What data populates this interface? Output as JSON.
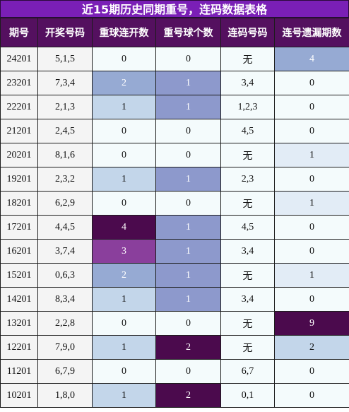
{
  "title": "近15期历史同期重号，连码数据表格",
  "columns": [
    "期号",
    "开奖号码",
    "重球连开数",
    "重号球个数",
    "连码号码",
    "连号遗漏期数"
  ],
  "rows": [
    {
      "period": "24201",
      "draw": "5,1,5",
      "repeat_streak": "0",
      "repeat_count": "0",
      "consecutive": "无",
      "consec_miss": "4"
    },
    {
      "period": "23201",
      "draw": "7,3,4",
      "repeat_streak": "2",
      "repeat_count": "1",
      "consecutive": "3,4",
      "consec_miss": "0"
    },
    {
      "period": "22201",
      "draw": "2,1,3",
      "repeat_streak": "1",
      "repeat_count": "1",
      "consecutive": "1,2,3",
      "consec_miss": "0"
    },
    {
      "period": "21201",
      "draw": "2,4,5",
      "repeat_streak": "0",
      "repeat_count": "0",
      "consecutive": "4,5",
      "consec_miss": "0"
    },
    {
      "period": "20201",
      "draw": "8,1,6",
      "repeat_streak": "0",
      "repeat_count": "0",
      "consecutive": "无",
      "consec_miss": "1"
    },
    {
      "period": "19201",
      "draw": "2,3,2",
      "repeat_streak": "1",
      "repeat_count": "1",
      "consecutive": "2,3",
      "consec_miss": "0"
    },
    {
      "period": "18201",
      "draw": "6,2,9",
      "repeat_streak": "0",
      "repeat_count": "0",
      "consecutive": "无",
      "consec_miss": "1"
    },
    {
      "period": "17201",
      "draw": "4,4,5",
      "repeat_streak": "4",
      "repeat_count": "1",
      "consecutive": "4,5",
      "consec_miss": "0"
    },
    {
      "period": "16201",
      "draw": "3,7,4",
      "repeat_streak": "3",
      "repeat_count": "1",
      "consecutive": "3,4",
      "consec_miss": "0"
    },
    {
      "period": "15201",
      "draw": "0,6,3",
      "repeat_streak": "2",
      "repeat_count": "1",
      "consecutive": "无",
      "consec_miss": "1"
    },
    {
      "period": "14201",
      "draw": "8,3,4",
      "repeat_streak": "1",
      "repeat_count": "1",
      "consecutive": "3,4",
      "consec_miss": "0"
    },
    {
      "period": "13201",
      "draw": "2,2,8",
      "repeat_streak": "0",
      "repeat_count": "0",
      "consecutive": "无",
      "consec_miss": "9"
    },
    {
      "period": "12201",
      "draw": "7,9,0",
      "repeat_streak": "1",
      "repeat_count": "2",
      "consecutive": "无",
      "consec_miss": "2"
    },
    {
      "period": "11201",
      "draw": "6,7,9",
      "repeat_streak": "0",
      "repeat_count": "0",
      "consecutive": "6,7",
      "consec_miss": "0"
    },
    {
      "period": "10201",
      "draw": "1,8,0",
      "repeat_streak": "1",
      "repeat_count": "2",
      "consecutive": "0,1",
      "consec_miss": "0"
    }
  ],
  "colors": {
    "title_bg": "#7a1fb6",
    "header_bg": "#54105f",
    "cell_bg": "#f4fbfc",
    "streak_1": "#c3d6ea",
    "streak_2": "#96aad3",
    "streak_3": "#8a3f9c",
    "streak_4": "#4b0a4d",
    "count_1": "#8d99cc",
    "count_2": "#4b0a4d"
  }
}
